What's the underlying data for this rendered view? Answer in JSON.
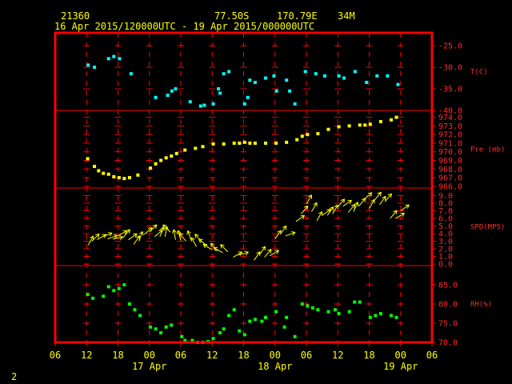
{
  "header": {
    "station": "21360",
    "lat": "77.50S",
    "lon": "170.79E",
    "elev": "34M",
    "period": "16 Apr 2015/120000UTC - 19 Apr 2015/000000UTC"
  },
  "corner_label": "2",
  "colors": {
    "frame": "#ff0000",
    "temp": "#00ffff",
    "pres": "#ffff00",
    "wind": "#ffff00",
    "rh": "#00ff00"
  },
  "chart_data": [
    {
      "type": "scatter",
      "id": "temperature",
      "ylabel": "T(C)",
      "ylim": [
        -40,
        -22
      ],
      "yticks": [
        -25.0,
        -30.0,
        -35.0,
        -40.0
      ],
      "ytick_labels": [
        "-25.0",
        "-30.0",
        "-35.0",
        "-40.0"
      ],
      "x_hours": [
        12.3,
        13.5,
        16.2,
        17.2,
        18.3,
        20.5,
        25.2,
        27.5,
        28.3,
        29.0,
        31.8,
        33.8,
        34.5,
        36.2,
        37.2,
        37.5,
        38.2,
        39.2,
        42.2,
        42.8,
        43.2,
        44.2,
        46.2,
        47.8,
        48.3,
        50.2,
        50.8,
        51.8,
        53.8,
        55.8,
        57.5,
        60.2,
        61.2,
        63.3,
        65.5,
        67.5,
        69.5,
        71.5
      ],
      "values": [
        -29.5,
        -30.0,
        -28.0,
        -27.5,
        -28.0,
        -31.5,
        -37.0,
        -36.5,
        -35.5,
        -35.0,
        -38.0,
        -39.0,
        -38.8,
        -38.5,
        -35.0,
        -36.0,
        -31.5,
        -31.0,
        -38.5,
        -37.0,
        -33.0,
        -33.5,
        -32.5,
        -32.0,
        -35.5,
        -33.0,
        -35.5,
        -38.5,
        -31.0,
        -31.5,
        -32.0,
        -32.0,
        -32.5,
        -31.0,
        -33.5,
        -32.0,
        -32.0,
        -34.0
      ]
    },
    {
      "type": "scatter",
      "id": "pressure",
      "ylabel": "Pre (mb)",
      "ylim": [
        965.8,
        974.8
      ],
      "yticks": [
        974.0,
        973.0,
        972.0,
        971.0,
        970.0,
        969.0,
        968.0,
        967.0,
        966.0
      ],
      "ytick_labels": [
        "974.0",
        "973.0",
        "972.0",
        "971.0",
        "970.0",
        "969.0",
        "968.0",
        "967.0",
        "966.0"
      ],
      "x_hours": [
        12.2,
        13.5,
        14.3,
        15.2,
        16.2,
        17.2,
        18.2,
        19.2,
        20.2,
        21.8,
        24.2,
        25.2,
        26.2,
        27.2,
        28.2,
        29.2,
        30.8,
        32.8,
        34.2,
        36.2,
        38.2,
        40.2,
        41.2,
        42.2,
        43.2,
        44.2,
        46.2,
        48.2,
        50.2,
        52.2,
        53.2,
        54.2,
        56.2,
        58.2,
        60.2,
        62.2,
        64.2,
        65.2,
        66.2,
        68.2,
        70.2,
        71.2
      ],
      "values": [
        969.2,
        968.3,
        967.8,
        967.5,
        967.4,
        967.1,
        967.0,
        966.9,
        967.0,
        967.3,
        968.1,
        968.6,
        969.0,
        969.3,
        969.5,
        969.8,
        970.2,
        970.4,
        970.6,
        970.9,
        970.9,
        971.0,
        971.0,
        971.1,
        971.0,
        971.0,
        971.0,
        971.0,
        971.1,
        971.4,
        971.8,
        972.0,
        972.1,
        972.6,
        972.9,
        973.0,
        973.1,
        973.1,
        973.2,
        973.5,
        973.7,
        974.0
      ]
    },
    {
      "type": "vector",
      "id": "wind",
      "ylabel": "SPD(MPS)",
      "ylim": [
        -0.2,
        10.0
      ],
      "yticks": [
        9.0,
        8.0,
        7.0,
        6.0,
        5.0,
        4.0,
        3.0,
        2.0,
        1.0,
        0.0
      ],
      "ytick_labels": [
        "9.0",
        "8.0",
        "7.0",
        "6.0",
        "5.0",
        "4.0",
        "3.0",
        "2.0",
        "1.0",
        "0.0"
      ],
      "x_hours": [
        12.3,
        13.0,
        14.0,
        15.0,
        16.0,
        17.0,
        18.0,
        19.0,
        20.0,
        21.0,
        22.0,
        23.0,
        24.0,
        25.0,
        26.0,
        27.0,
        28.0,
        29.0,
        30.0,
        31.0,
        32.0,
        33.0,
        34.0,
        35.0,
        36.0,
        37.0,
        38.0,
        39.0,
        40.0,
        41.0,
        44.0,
        45.0,
        46.0,
        47.0,
        48.0,
        49.0,
        50.0,
        52.0,
        53.0,
        54.0,
        55.0,
        56.0,
        57.0,
        58.0,
        59.0,
        60.0,
        61.0,
        62.0,
        63.0,
        64.0,
        65.0,
        66.0,
        67.0,
        68.0,
        69.0,
        70.0,
        71.0,
        72.0
      ],
      "values": [
        2.5,
        3.0,
        3.2,
        3.6,
        3.3,
        3.3,
        3.7,
        3.5,
        3.2,
        2.6,
        3.0,
        3.9,
        4.2,
        3.6,
        3.6,
        3.6,
        4.2,
        3.2,
        3.1,
        3.0,
        3.1,
        2.3,
        2.9,
        2.4,
        1.9,
        1.7,
        1.5,
        1.6,
        0.9,
        1.2,
        0.5,
        1.2,
        0.9,
        1.1,
        3.3,
        3.9,
        3.7,
        5.6,
        6.6,
        7.9,
        6.9,
        5.7,
        6.4,
        6.4,
        6.6,
        7.5,
        7.6,
        6.8,
        6.9,
        7.6,
        8.5,
        7.3,
        8.4,
        7.8,
        8.2,
        6.0,
        6.0,
        7.0
      ],
      "directions_deg": [
        30,
        45,
        60,
        70,
        70,
        80,
        60,
        40,
        55,
        35,
        20,
        50,
        45,
        50,
        20,
        10,
        315,
        350,
        345,
        320,
        340,
        330,
        320,
        310,
        300,
        320,
        300,
        315,
        60,
        75,
        35,
        35,
        40,
        60,
        35,
        35,
        70,
        55,
        40,
        30,
        30,
        30,
        55,
        35,
        30,
        40,
        55,
        40,
        25,
        40,
        50,
        30,
        40,
        35,
        40,
        40,
        60,
        55
      ]
    },
    {
      "type": "scatter",
      "id": "humidity",
      "ylabel": "RH(%)",
      "ylim": [
        70,
        90
      ],
      "yticks": [
        85.0,
        80.0,
        75.0,
        70.0
      ],
      "ytick_labels": [
        "85.0",
        "80.0",
        "75.0",
        "70.0"
      ],
      "x_hours": [
        12.2,
        13.2,
        15.2,
        16.2,
        17.2,
        18.2,
        19.2,
        20.2,
        21.2,
        22.2,
        24.2,
        25.2,
        26.2,
        27.2,
        28.2,
        30.2,
        30.8,
        32.2,
        33.2,
        34.2,
        35.2,
        36.2,
        37.5,
        38.2,
        39.2,
        40.2,
        41.2,
        42.2,
        43.2,
        44.2,
        45.5,
        46.2,
        48.2,
        49.8,
        50.2,
        51.8,
        53.2,
        54.2,
        55.2,
        56.2,
        58.2,
        59.5,
        60.2,
        62.2,
        63.2,
        64.2,
        66.2,
        67.2,
        68.2,
        70.2,
        71.2
      ],
      "values": [
        82.5,
        81.5,
        82.0,
        84.5,
        83.5,
        84.0,
        85.0,
        80.0,
        78.5,
        77.0,
        74.0,
        73.5,
        72.5,
        74.0,
        74.5,
        71.5,
        70.5,
        70.5,
        70.0,
        70.0,
        70.2,
        71.0,
        72.5,
        73.5,
        77.0,
        78.5,
        73.0,
        72.0,
        75.5,
        76.0,
        75.5,
        76.5,
        78.0,
        74.0,
        76.5,
        71.5,
        80.0,
        79.5,
        79.0,
        78.5,
        78.0,
        78.5,
        77.5,
        78.0,
        80.5,
        80.5,
        76.5,
        77.0,
        77.5,
        77.0,
        76.5
      ]
    }
  ],
  "x_axis": {
    "range_hours": [
      6,
      78
    ],
    "tick_hours": [
      6,
      12,
      18,
      24,
      30,
      36,
      42,
      48,
      54,
      60,
      66,
      72,
      78
    ],
    "tick_labels": [
      "06",
      "12",
      "18",
      "00",
      "06",
      "12",
      "18",
      "00",
      "06",
      "12",
      "18",
      "00",
      "06"
    ],
    "date_labels": [
      {
        "label": "17 Apr",
        "hour": 24
      },
      {
        "label": "18 Apr",
        "hour": 48
      },
      {
        "label": "19 Apr",
        "hour": 72
      }
    ]
  }
}
